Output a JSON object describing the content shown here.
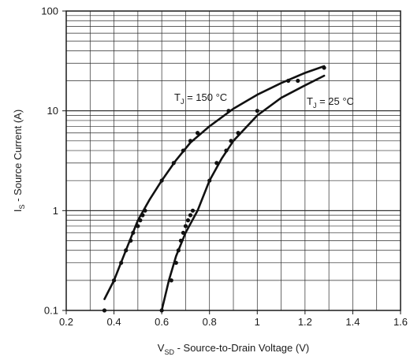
{
  "chart_data": {
    "type": "line",
    "title": "",
    "xlabel": {
      "main": "V",
      "sub": "SD",
      "rest": " - Source-to-Drain Voltage (V)"
    },
    "ylabel": {
      "main": "I",
      "sub": "S",
      "rest": " - Source Current (A)"
    },
    "xlim": [
      0.2,
      1.6
    ],
    "ylim": [
      0.1,
      100
    ],
    "y_scale": "log",
    "grid": true,
    "x_ticks": [
      "0.2",
      "0.4",
      "0.6",
      "0.8",
      "1",
      "1.2",
      "1.4",
      "1.6"
    ],
    "y_ticks": [
      "0.1",
      "1",
      "10",
      "100"
    ],
    "series": [
      {
        "curve": [
          [
            0.36,
            0.13
          ],
          [
            0.4,
            0.2
          ],
          [
            0.45,
            0.4
          ],
          [
            0.5,
            0.8
          ],
          [
            0.55,
            1.3
          ],
          [
            0.6,
            2.0
          ],
          [
            0.66,
            3.2
          ],
          [
            0.72,
            4.8
          ],
          [
            0.8,
            7.0
          ],
          [
            0.9,
            10.5
          ],
          [
            1.0,
            14.5
          ],
          [
            1.1,
            19.0
          ],
          [
            1.2,
            24.0
          ],
          [
            1.28,
            28.0
          ]
        ],
        "points": [
          [
            0.36,
            0.1
          ],
          [
            0.4,
            0.2
          ],
          [
            0.43,
            0.3
          ],
          [
            0.45,
            0.4
          ],
          [
            0.47,
            0.5
          ],
          [
            0.48,
            0.6
          ],
          [
            0.5,
            0.7
          ],
          [
            0.51,
            0.8
          ],
          [
            0.52,
            0.9
          ],
          [
            0.53,
            1.0
          ],
          [
            0.6,
            2.0
          ],
          [
            0.65,
            3.0
          ],
          [
            0.69,
            4.0
          ],
          [
            0.72,
            5.0
          ],
          [
            0.75,
            6.0
          ],
          [
            0.88,
            10.0
          ],
          [
            1.13,
            20.0
          ],
          [
            1.17,
            20.0
          ],
          [
            1.28,
            27.0
          ]
        ],
        "label": {
          "main": "T",
          "sub": "J",
          "rest": " = 150 °C"
        }
      },
      {
        "curve": [
          [
            0.6,
            0.1
          ],
          [
            0.63,
            0.2
          ],
          [
            0.66,
            0.35
          ],
          [
            0.7,
            0.6
          ],
          [
            0.75,
            1.0
          ],
          [
            0.8,
            2.0
          ],
          [
            0.85,
            3.3
          ],
          [
            0.9,
            5.0
          ],
          [
            1.0,
            9.0
          ],
          [
            1.1,
            13.5
          ],
          [
            1.2,
            18.0
          ],
          [
            1.28,
            22.5
          ]
        ],
        "points": [
          [
            0.6,
            0.1
          ],
          [
            0.64,
            0.2
          ],
          [
            0.66,
            0.3
          ],
          [
            0.67,
            0.4
          ],
          [
            0.68,
            0.5
          ],
          [
            0.69,
            0.6
          ],
          [
            0.7,
            0.7
          ],
          [
            0.71,
            0.8
          ],
          [
            0.72,
            0.9
          ],
          [
            0.73,
            1.0
          ],
          [
            0.8,
            2.0
          ],
          [
            0.83,
            3.0
          ],
          [
            0.87,
            4.0
          ],
          [
            0.89,
            5.0
          ],
          [
            0.92,
            6.0
          ],
          [
            1.0,
            10.0
          ]
        ],
        "label": {
          "main": "T",
          "sub": "J",
          "rest": " = 25 °C"
        }
      }
    ]
  }
}
